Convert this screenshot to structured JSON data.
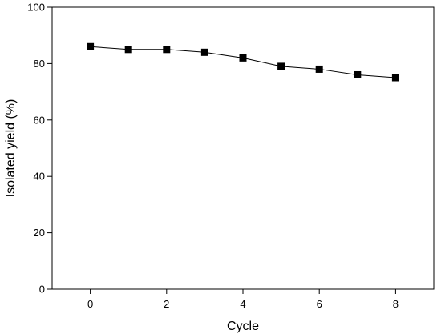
{
  "chart_data": {
    "type": "line",
    "title": "",
    "xlabel": "Cycle",
    "ylabel": "Isolated yield (%)",
    "xlim": [
      -1,
      9
    ],
    "ylim": [
      0,
      100
    ],
    "xticks": [
      0,
      2,
      4,
      6,
      8
    ],
    "yticks": [
      0,
      20,
      40,
      60,
      80,
      100
    ],
    "grid": false,
    "legend": "none",
    "marker": "square",
    "color": "#000000",
    "series": [
      {
        "x": [
          0,
          1,
          2,
          3,
          4,
          5,
          6,
          7,
          8
        ],
        "y": [
          86,
          85,
          85,
          84,
          82,
          79,
          78,
          76,
          75
        ]
      }
    ]
  }
}
